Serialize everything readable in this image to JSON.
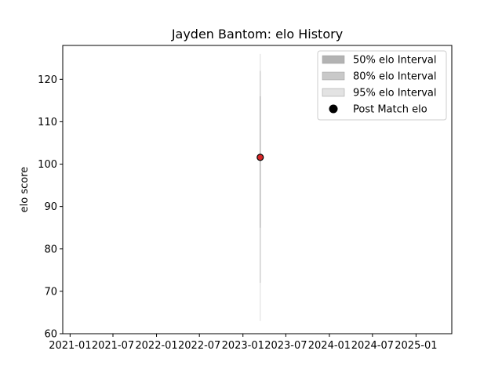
{
  "chart_data": {
    "type": "scatter",
    "title": "Jayden Bantom: elo History",
    "xlabel": "",
    "ylabel": "elo score",
    "xlim": [
      "2020-12-01",
      "2025-06-01"
    ],
    "ylim": [
      60,
      128
    ],
    "x_tick_values": [
      "2021-01-01",
      "2021-07-01",
      "2022-01-01",
      "2022-07-01",
      "2023-01-01",
      "2023-07-01",
      "2024-01-01",
      "2024-07-01",
      "2025-01-01"
    ],
    "x_tick_labels": [
      "2021-01",
      "2021-07",
      "2022-01",
      "2022-07",
      "2023-01",
      "2023-07",
      "2024-01",
      "2024-07",
      "2025-01"
    ],
    "y_ticks": [
      60,
      70,
      80,
      90,
      100,
      110,
      120
    ],
    "grid": false,
    "legend_position": "upper right",
    "series": [
      {
        "name": "50% elo Interval",
        "kind": "band",
        "color": "#b3b3b3",
        "x": [
          "2023-03-15"
        ],
        "low": [
          85.0
        ],
        "high": [
          116.0
        ]
      },
      {
        "name": "80% elo Interval",
        "kind": "band",
        "color": "#c9c9c9",
        "x": [
          "2023-03-15"
        ],
        "low": [
          72.0
        ],
        "high": [
          122.0
        ]
      },
      {
        "name": "95% elo Interval",
        "kind": "band",
        "color": "#e3e3e3",
        "x": [
          "2023-03-15"
        ],
        "low": [
          63.0
        ],
        "high": [
          126.0
        ]
      },
      {
        "name": "Post Match elo",
        "kind": "points",
        "color": "#000000",
        "edge_color": "#8b0000",
        "marker_face": "#d62728",
        "x": [
          "2023-03-15"
        ],
        "y": [
          101.6
        ]
      }
    ]
  }
}
